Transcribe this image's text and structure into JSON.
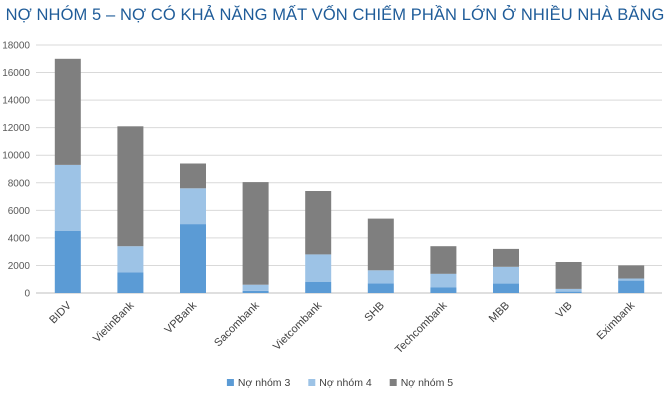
{
  "chart_data": {
    "type": "bar",
    "stacked": true,
    "title": "NỢ NHÓM 5 – NỢ CÓ KHẢ NĂNG MẤT VỐN CHIẾM PHẦN LỚN Ở NHIỀU NHÀ BĂNG",
    "categories": [
      "BIDV",
      "VietinBank",
      "VPBank",
      "Sacombank",
      "Vietcombank",
      "SHB",
      "Techcombank",
      "MBB",
      "VIB",
      "Eximbank"
    ],
    "series": [
      {
        "name": "Nợ nhóm 3",
        "color": "#5b9bd5",
        "values": [
          4500,
          1500,
          5000,
          150,
          800,
          700,
          400,
          700,
          100,
          900
        ]
      },
      {
        "name": "Nợ nhóm 4",
        "color": "#9dc3e6",
        "values": [
          4800,
          1900,
          2600,
          450,
          2000,
          950,
          1000,
          1200,
          200,
          150
        ]
      },
      {
        "name": "Nợ nhóm 5",
        "color": "#7f7f7f",
        "values": [
          7700,
          8700,
          1800,
          7450,
          4600,
          3750,
          2000,
          1300,
          1950,
          950
        ]
      }
    ],
    "ylim": [
      0,
      18000
    ],
    "yticks": [
      0,
      2000,
      4000,
      6000,
      8000,
      10000,
      12000,
      14000,
      16000,
      18000
    ],
    "grid": true,
    "legend": "bottom",
    "xlabel": "",
    "ylabel": ""
  }
}
